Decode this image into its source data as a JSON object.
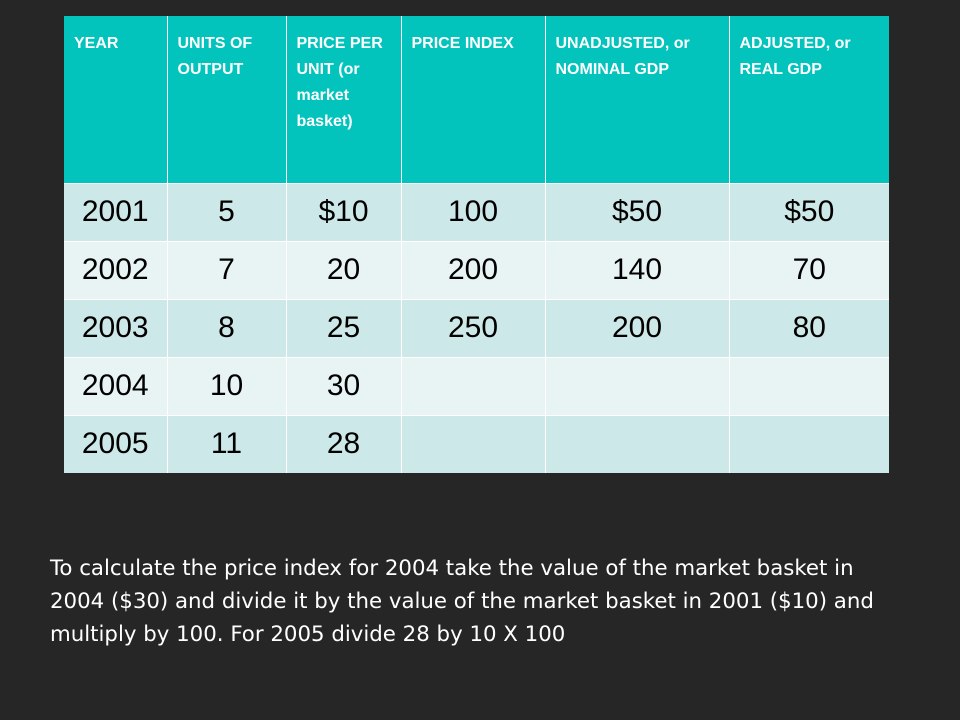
{
  "table": {
    "headers": [
      "YEAR",
      "UNITS OF OUTPUT",
      "PRICE PER UNIT (or market basket)",
      "PRICE INDEX",
      "UNADJUSTED, or NOMINAL GDP",
      "ADJUSTED, or REAL GDP"
    ],
    "rows": [
      [
        "2001",
        "5",
        "$10",
        "100",
        "$50",
        "$50"
      ],
      [
        "2002",
        "7",
        "20",
        "200",
        "140",
        "70"
      ],
      [
        "2003",
        "8",
        "25",
        "250",
        "200",
        "80"
      ],
      [
        "2004",
        "10",
        "30",
        "",
        "",
        ""
      ],
      [
        "2005",
        "11",
        "28",
        "",
        "",
        ""
      ]
    ]
  },
  "colors": {
    "background": "#262626",
    "header": "#03c4bd",
    "row_dark": "#cde8e8",
    "row_light": "#e8f4f3"
  },
  "note": "To calculate the price index for 2004 take the value of the market basket in 2004 ($30) and divide it by the value of the market basket in 2001 ($10)  and multiply by 100.  For 2005 divide 28 by 10 X 100"
}
